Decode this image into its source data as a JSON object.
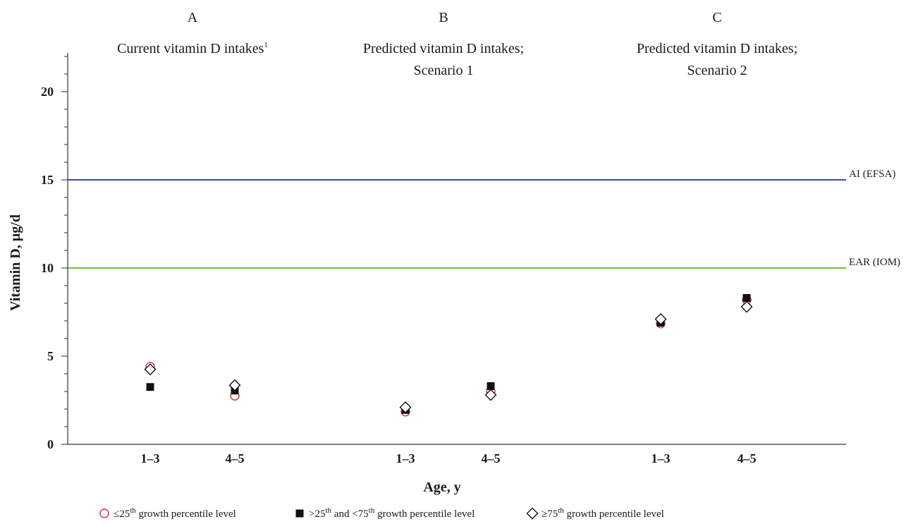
{
  "chart_data": {
    "type": "scatter",
    "ylabel": "Vitamin D, µg/d",
    "xlabel": "Age, y",
    "ylim": [
      0,
      22
    ],
    "yticks": [
      "0",
      "5",
      "10",
      "15",
      "20"
    ],
    "grid": false,
    "legend_position": "bottom",
    "panels": [
      {
        "letter": "A",
        "title_lines": [
          "Current vitamin D intakes"
        ],
        "title_sup": "1",
        "categories": [
          "1–3",
          "4–5"
        ]
      },
      {
        "letter": "B",
        "title_lines": [
          "Predicted vitamin D intakes;",
          "Scenario 1"
        ],
        "title_sup": "",
        "categories": [
          "1–3",
          "4–5"
        ]
      },
      {
        "letter": "C",
        "title_lines": [
          "Predicted vitamin D intakes;",
          "Scenario 2"
        ],
        "title_sup": "",
        "categories": [
          "1–3",
          "4–5"
        ]
      }
    ],
    "reference_lines": [
      {
        "label": "AI (EFSA)",
        "value": 15,
        "color": "#3a4a9a"
      },
      {
        "label": "EAR (IOM)",
        "value": 10,
        "color": "#6cbf3c"
      }
    ],
    "series": [
      {
        "marker": "circle",
        "color": "#e0334a",
        "legend": {
          "prefix": "≤25",
          "sup": "th",
          "rest": " growth percentile level"
        },
        "values": [
          [
            4.4,
            2.75
          ],
          [
            1.85,
            3.0
          ],
          [
            6.85,
            8.2
          ]
        ]
      },
      {
        "marker": "square",
        "color": "#111111",
        "legend": {
          "prefix": ">25",
          "sup": "th",
          "mid": " and <75",
          "sup2": "th",
          "rest": " growth percentile level"
        },
        "values": [
          [
            3.25,
            3.05
          ],
          [
            1.95,
            3.3
          ],
          [
            6.9,
            8.3
          ]
        ]
      },
      {
        "marker": "diamond",
        "color": "#111111",
        "legend": {
          "prefix": "≥75",
          "sup": "th",
          "rest": " growth percentile level"
        },
        "values": [
          [
            4.25,
            3.35
          ],
          [
            2.1,
            2.8
          ],
          [
            7.1,
            7.8
          ]
        ]
      }
    ]
  }
}
